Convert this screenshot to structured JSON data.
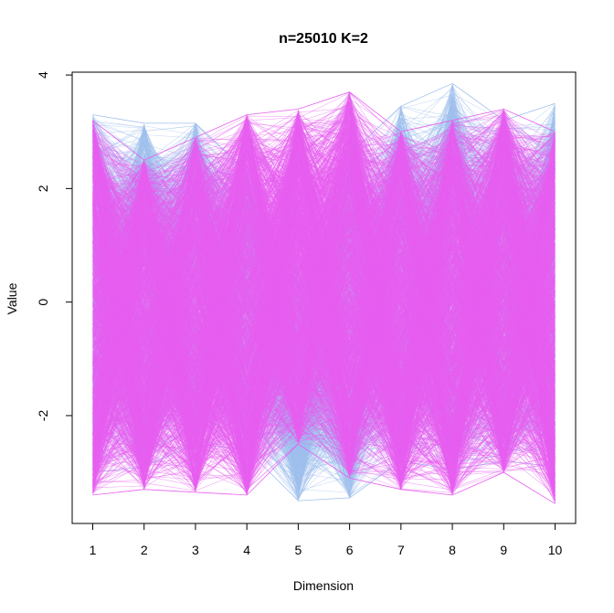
{
  "chart_data": {
    "type": "line",
    "subtype": "parallel-coordinates",
    "title": "n=25010 K=2",
    "xlabel": "Dimension",
    "ylabel": "Value",
    "x": [
      1,
      2,
      3,
      4,
      5,
      6,
      7,
      8,
      9,
      10
    ],
    "x_ticks": [
      "1",
      "2",
      "3",
      "4",
      "5",
      "6",
      "7",
      "8",
      "9",
      "10"
    ],
    "y_ticks": [
      "-2",
      "0",
      "2",
      "4"
    ],
    "xlim": [
      0.6,
      10.4
    ],
    "ylim": [
      -3.9,
      4.05
    ],
    "grid": false,
    "legend": "none",
    "series": [
      {
        "color": "#9fc0ec",
        "envelope_max": [
          3.3,
          3.15,
          3.15,
          2.3,
          0.6,
          2.6,
          3.45,
          3.85,
          3.2,
          3.5
        ],
        "envelope_min": [
          -3.0,
          -2.9,
          -2.5,
          -2.6,
          -3.5,
          -3.45,
          -2.8,
          -2.95,
          -2.8,
          -2.9
        ]
      },
      {
        "color": "#e85ef0",
        "envelope_max": [
          3.2,
          2.5,
          2.9,
          3.3,
          3.4,
          3.7,
          3.0,
          3.2,
          3.4,
          3.0
        ],
        "envelope_min": [
          -3.4,
          -3.3,
          -3.35,
          -3.4,
          -2.5,
          -3.1,
          -3.3,
          -3.4,
          -3.0,
          -3.55
        ]
      }
    ]
  }
}
